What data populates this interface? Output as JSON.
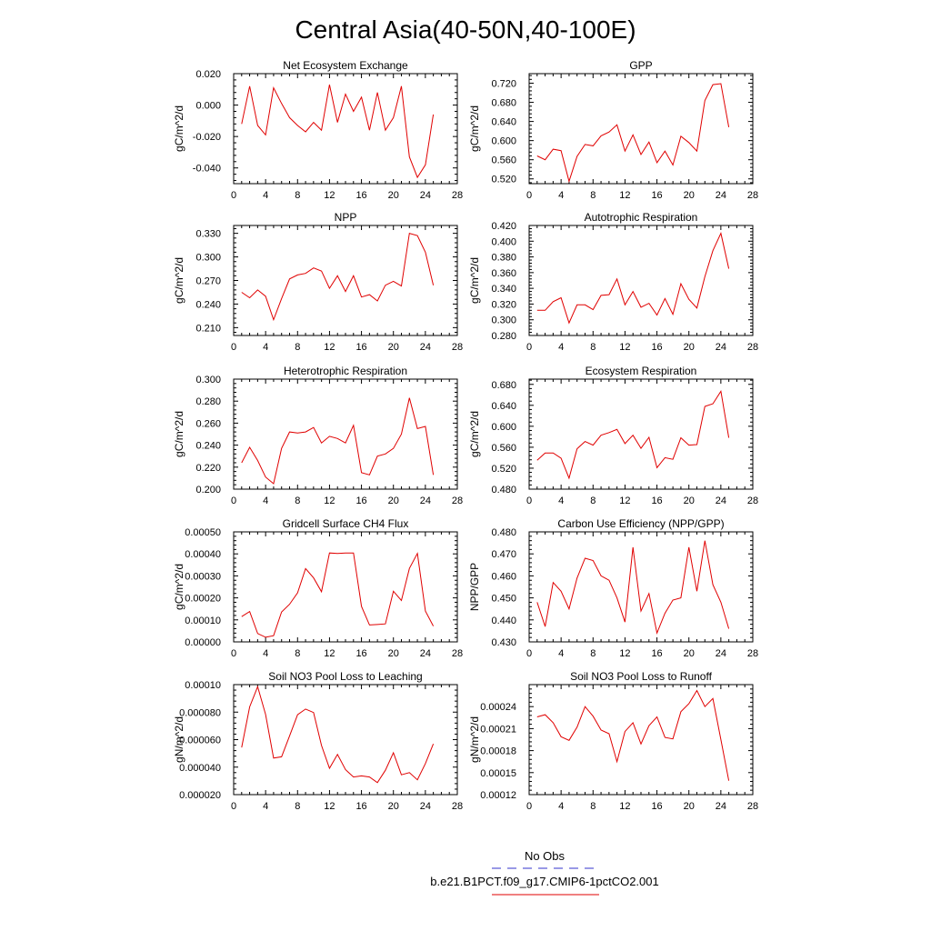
{
  "figure": {
    "title": "Central Asia(40-50N,40-100E)"
  },
  "legend": {
    "obs_label": "No Obs",
    "obs_color": "#3333cc",
    "model_label": "b.e21.B1PCT.f09_g17.CMIP6-1pctCO2.001",
    "model_color": "#e00000"
  },
  "chart_data": [
    {
      "type": "line",
      "title": "Net Ecosystem Exchange",
      "ylabel": "gC/m^2/d",
      "xlim": [
        0,
        28
      ],
      "xticks": [
        0,
        4,
        8,
        12,
        16,
        20,
        24,
        28
      ],
      "ylim": [
        -0.05,
        0.02
      ],
      "yticks": [
        "-0.040",
        "-0.020",
        "0.000",
        "0.020"
      ],
      "x": [
        1,
        2,
        3,
        4,
        5,
        6,
        7,
        8,
        9,
        10,
        11,
        12,
        13,
        14,
        15,
        16,
        17,
        18,
        19,
        20,
        21,
        22,
        23,
        24,
        25
      ],
      "series": [
        {
          "values": [
            -0.012,
            0.012,
            -0.013,
            -0.019,
            0.011,
            0.001,
            -0.008,
            -0.013,
            -0.017,
            -0.011,
            -0.016,
            0.013,
            -0.011,
            0.007,
            -0.004,
            0.005,
            -0.016,
            0.008,
            -0.016,
            -0.008,
            0.012,
            -0.033,
            -0.046,
            -0.038,
            -0.006
          ]
        }
      ]
    },
    {
      "type": "line",
      "title": "GPP",
      "ylabel": "gC/m^2/d",
      "xlim": [
        0,
        28
      ],
      "xticks": [
        0,
        4,
        8,
        12,
        16,
        20,
        24,
        28
      ],
      "ylim": [
        0.51,
        0.74
      ],
      "yticks": [
        "0.520",
        "0.560",
        "0.600",
        "0.640",
        "0.680",
        "0.720"
      ],
      "x": [
        1,
        2,
        3,
        4,
        5,
        6,
        7,
        8,
        9,
        10,
        11,
        12,
        13,
        14,
        15,
        16,
        17,
        18,
        19,
        20,
        21,
        22,
        23,
        24,
        25
      ],
      "series": [
        {
          "values": [
            0.568,
            0.56,
            0.582,
            0.579,
            0.515,
            0.567,
            0.592,
            0.589,
            0.61,
            0.618,
            0.633,
            0.578,
            0.612,
            0.571,
            0.597,
            0.554,
            0.578,
            0.549,
            0.609,
            0.596,
            0.578,
            0.684,
            0.717,
            0.719,
            0.628
          ]
        }
      ]
    },
    {
      "type": "line",
      "title": "NPP",
      "ylabel": "gC/m^2/d",
      "xlim": [
        0,
        28
      ],
      "xticks": [
        0,
        4,
        8,
        12,
        16,
        20,
        24,
        28
      ],
      "ylim": [
        0.2,
        0.34
      ],
      "yticks": [
        "0.210",
        "0.240",
        "0.270",
        "0.300",
        "0.330"
      ],
      "x": [
        1,
        2,
        3,
        4,
        5,
        6,
        7,
        8,
        9,
        10,
        11,
        12,
        13,
        14,
        15,
        16,
        17,
        18,
        19,
        20,
        21,
        22,
        23,
        24,
        25
      ],
      "series": [
        {
          "values": [
            0.255,
            0.248,
            0.258,
            0.25,
            0.22,
            0.247,
            0.272,
            0.277,
            0.279,
            0.286,
            0.282,
            0.26,
            0.276,
            0.256,
            0.276,
            0.249,
            0.252,
            0.244,
            0.264,
            0.269,
            0.263,
            0.33,
            0.327,
            0.306,
            0.264
          ]
        }
      ]
    },
    {
      "type": "line",
      "title": "Autotrophic Respiration",
      "ylabel": "gC/m^2/d",
      "xlim": [
        0,
        28
      ],
      "xticks": [
        0,
        4,
        8,
        12,
        16,
        20,
        24,
        28
      ],
      "ylim": [
        0.28,
        0.42
      ],
      "yticks": [
        "0.280",
        "0.300",
        "0.320",
        "0.340",
        "0.360",
        "0.380",
        "0.400",
        "0.420"
      ],
      "x": [
        1,
        2,
        3,
        4,
        5,
        6,
        7,
        8,
        9,
        10,
        11,
        12,
        13,
        14,
        15,
        16,
        17,
        18,
        19,
        20,
        21,
        22,
        23,
        24,
        25
      ],
      "series": [
        {
          "values": [
            0.312,
            0.312,
            0.323,
            0.328,
            0.296,
            0.319,
            0.319,
            0.313,
            0.331,
            0.332,
            0.352,
            0.319,
            0.336,
            0.316,
            0.321,
            0.306,
            0.327,
            0.307,
            0.346,
            0.326,
            0.315,
            0.355,
            0.388,
            0.41,
            0.365
          ]
        }
      ]
    },
    {
      "type": "line",
      "title": "Heterotrophic Respiration",
      "ylabel": "gC/m^2/d",
      "xlim": [
        0,
        28
      ],
      "xticks": [
        0,
        4,
        8,
        12,
        16,
        20,
        24,
        28
      ],
      "ylim": [
        0.2,
        0.3
      ],
      "yticks": [
        "0.200",
        "0.220",
        "0.240",
        "0.260",
        "0.280",
        "0.300"
      ],
      "x": [
        1,
        2,
        3,
        4,
        5,
        6,
        7,
        8,
        9,
        10,
        11,
        12,
        13,
        14,
        15,
        16,
        17,
        18,
        19,
        20,
        21,
        22,
        23,
        24,
        25
      ],
      "series": [
        {
          "values": [
            0.224,
            0.238,
            0.226,
            0.211,
            0.205,
            0.237,
            0.252,
            0.251,
            0.252,
            0.256,
            0.242,
            0.248,
            0.246,
            0.242,
            0.258,
            0.215,
            0.213,
            0.23,
            0.232,
            0.237,
            0.25,
            0.283,
            0.255,
            0.257,
            0.213
          ]
        }
      ]
    },
    {
      "type": "line",
      "title": "Ecosystem Respiration",
      "ylabel": "gC/m^2/d",
      "xlim": [
        0,
        28
      ],
      "xticks": [
        0,
        4,
        8,
        12,
        16,
        20,
        24,
        28
      ],
      "ylim": [
        0.48,
        0.69
      ],
      "yticks": [
        "0.480",
        "0.520",
        "0.560",
        "0.600",
        "0.640",
        "0.680"
      ],
      "x": [
        1,
        2,
        3,
        4,
        5,
        6,
        7,
        8,
        9,
        10,
        11,
        12,
        13,
        14,
        15,
        16,
        17,
        18,
        19,
        20,
        21,
        22,
        23,
        24,
        25
      ],
      "series": [
        {
          "values": [
            0.535,
            0.549,
            0.549,
            0.539,
            0.501,
            0.557,
            0.571,
            0.564,
            0.583,
            0.588,
            0.594,
            0.567,
            0.583,
            0.558,
            0.579,
            0.521,
            0.54,
            0.537,
            0.578,
            0.564,
            0.565,
            0.638,
            0.643,
            0.667,
            0.578
          ]
        }
      ]
    },
    {
      "type": "line",
      "title": "Gridcell Surface CH4 Flux",
      "ylabel": "gC/m^2/d",
      "xlim": [
        0,
        28
      ],
      "xticks": [
        0,
        4,
        8,
        12,
        16,
        20,
        24,
        28
      ],
      "ylim": [
        0,
        0.0005
      ],
      "yticks": [
        "0.00000",
        "0.00010",
        "0.00020",
        "0.00030",
        "0.00040",
        "0.00050"
      ],
      "x": [
        1,
        2,
        3,
        4,
        5,
        6,
        7,
        8,
        9,
        10,
        11,
        12,
        13,
        14,
        15,
        16,
        17,
        18,
        19,
        20,
        21,
        22,
        23,
        24,
        25
      ],
      "series": [
        {
          "values": [
            0.000115,
            0.000138,
            3.8e-05,
            2.1e-05,
            2.8e-05,
            0.000136,
            0.000171,
            0.000223,
            0.000333,
            0.000291,
            0.000228,
            0.000404,
            0.000402,
            0.000404,
            0.000404,
            0.000161,
            7.7e-05,
            7.9e-05,
            8.2e-05,
            0.00023,
            0.000188,
            0.000334,
            0.000402,
            0.00014,
            7.2e-05
          ]
        }
      ]
    },
    {
      "type": "line",
      "title": "Carbon Use Efficiency (NPP/GPP)",
      "ylabel": "NPP/GPP",
      "xlim": [
        0,
        28
      ],
      "xticks": [
        0,
        4,
        8,
        12,
        16,
        20,
        24,
        28
      ],
      "ylim": [
        0.43,
        0.48
      ],
      "yticks": [
        "0.430",
        "0.440",
        "0.450",
        "0.460",
        "0.470",
        "0.480"
      ],
      "x": [
        1,
        2,
        3,
        4,
        5,
        6,
        7,
        8,
        9,
        10,
        11,
        12,
        13,
        14,
        15,
        16,
        17,
        18,
        19,
        20,
        21,
        22,
        23,
        24,
        25
      ],
      "series": [
        {
          "values": [
            0.448,
            0.437,
            0.457,
            0.453,
            0.445,
            0.459,
            0.468,
            0.467,
            0.46,
            0.458,
            0.45,
            0.439,
            0.473,
            0.444,
            0.452,
            0.434,
            0.443,
            0.449,
            0.45,
            0.473,
            0.453,
            0.476,
            0.456,
            0.448,
            0.436
          ]
        }
      ]
    },
    {
      "type": "line",
      "title": "Soil NO3 Pool Loss to Leaching",
      "ylabel": "gN/m^2/d",
      "xlim": [
        0,
        28
      ],
      "xticks": [
        0,
        4,
        8,
        12,
        16,
        20,
        24,
        28
      ],
      "ylim": [
        2e-05,
        0.0001
      ],
      "yticks": [
        "0.000020",
        "0.000040",
        "0.000060",
        "0.000080",
        "0.00010"
      ],
      "x": [
        1,
        2,
        3,
        4,
        5,
        6,
        7,
        8,
        9,
        10,
        11,
        12,
        13,
        14,
        15,
        16,
        17,
        18,
        19,
        20,
        21,
        22,
        23,
        24,
        25
      ],
      "series": [
        {
          "values": [
            5.43e-05,
            8.38e-05,
            9.85e-05,
            7.83e-05,
            4.66e-05,
            4.75e-05,
            6.27e-05,
            7.81e-05,
            8.22e-05,
            7.97e-05,
            5.58e-05,
            3.92e-05,
            4.92e-05,
            3.82e-05,
            3.28e-05,
            3.36e-05,
            3.28e-05,
            2.87e-05,
            3.77e-05,
            5.05e-05,
            3.44e-05,
            3.6e-05,
            3.08e-05,
            4.26e-05,
            5.69e-05
          ]
        }
      ]
    },
    {
      "type": "line",
      "title": "Soil NO3 Pool Loss to Runoff",
      "ylabel": "gN/m^2/d",
      "xlim": [
        0,
        28
      ],
      "xticks": [
        0,
        4,
        8,
        12,
        16,
        20,
        24,
        28
      ],
      "ylim": [
        0.00012,
        0.00027
      ],
      "yticks": [
        "0.00012",
        "0.00015",
        "0.00018",
        "0.00021",
        "0.00024"
      ],
      "x": [
        1,
        2,
        3,
        4,
        5,
        6,
        7,
        8,
        9,
        10,
        11,
        12,
        13,
        14,
        15,
        16,
        17,
        18,
        19,
        20,
        21,
        22,
        23,
        24,
        25
      ],
      "series": [
        {
          "values": [
            0.000226,
            0.000229,
            0.000218,
            0.000199,
            0.000194,
            0.000212,
            0.00024,
            0.000227,
            0.000208,
            0.000203,
            0.000165,
            0.000206,
            0.000218,
            0.000189,
            0.000214,
            0.000226,
            0.000198,
            0.000196,
            0.000233,
            0.000244,
            0.000262,
            0.00024,
            0.000251,
            0.000195,
            0.000139
          ]
        }
      ]
    }
  ]
}
